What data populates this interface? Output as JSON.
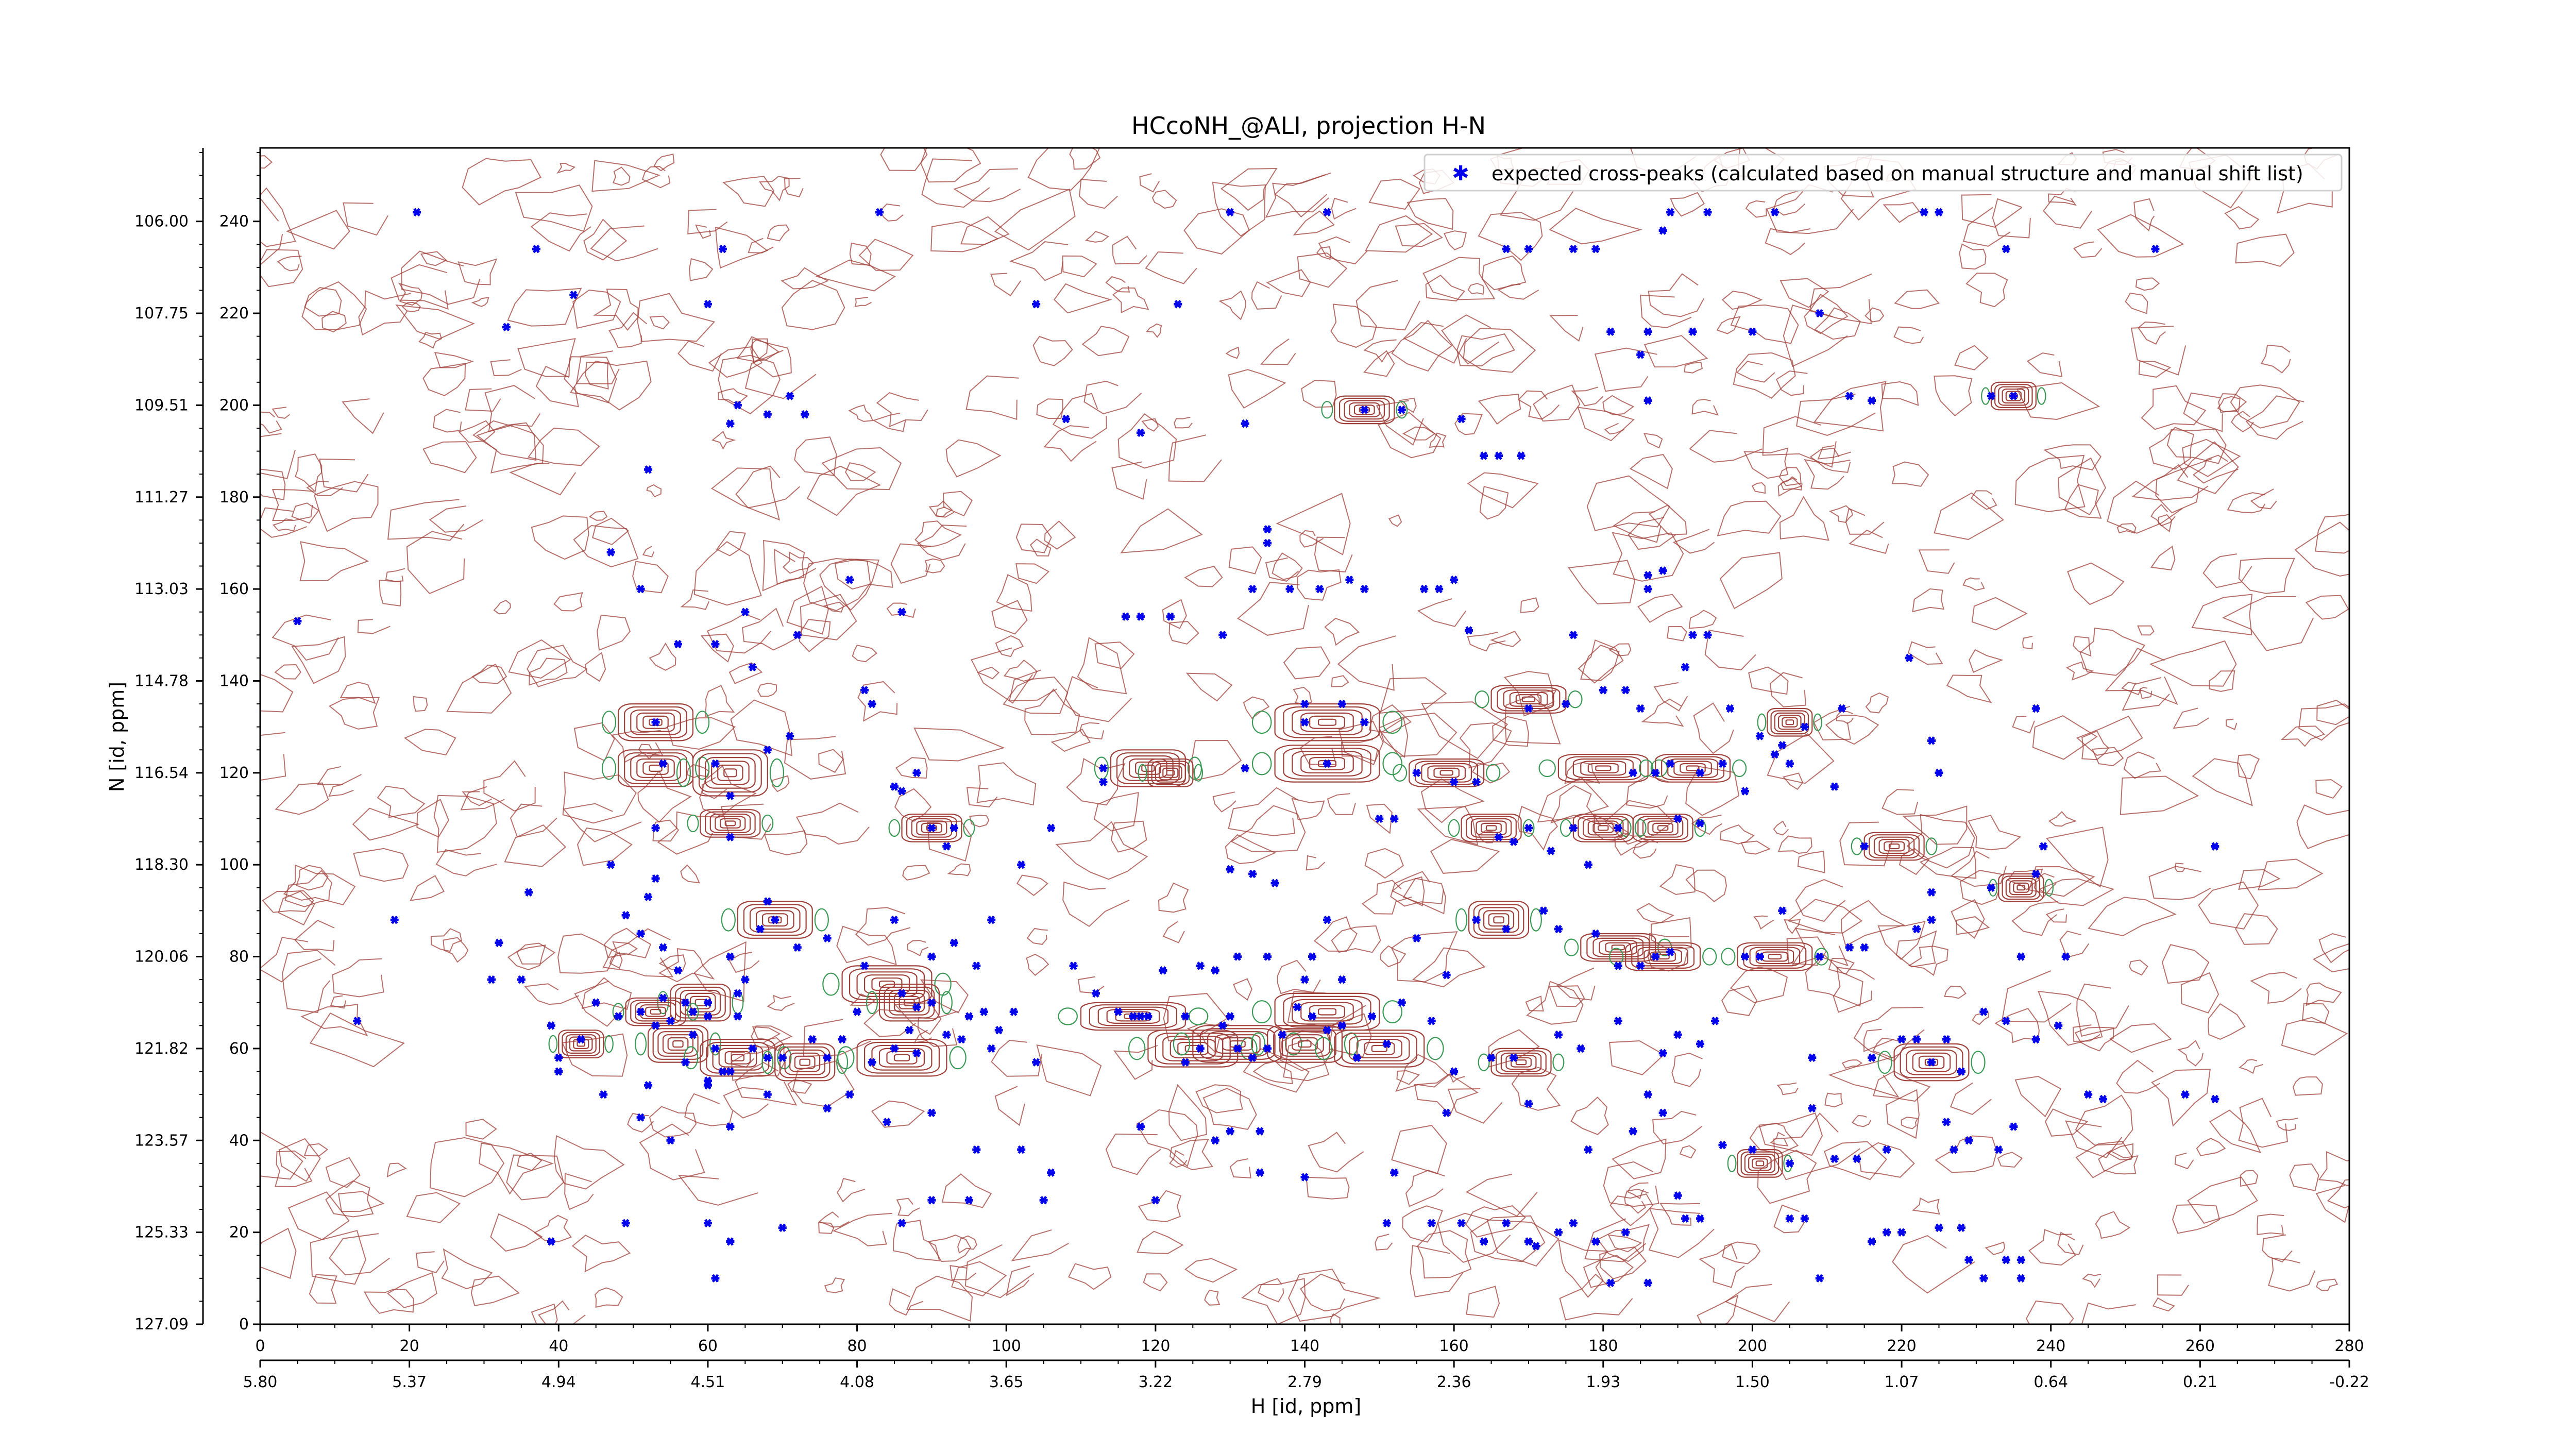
{
  "chart_data": {
    "type": "scatter",
    "title": "HCcoNH_@ALI, projection H-N",
    "xlabel": "H [id, ppm]",
    "ylabel": "N [id, ppm]",
    "xlim": [
      0,
      280
    ],
    "ylim": [
      0,
      256
    ],
    "x_ticks": [
      0,
      20,
      40,
      60,
      80,
      100,
      120,
      140,
      160,
      180,
      200,
      220,
      240,
      260,
      280
    ],
    "y_ticks": [
      0,
      20,
      40,
      60,
      80,
      100,
      120,
      140,
      160,
      180,
      200,
      220,
      240
    ],
    "x_ppm_ticks": [
      "5.80",
      "5.37",
      "4.94",
      "4.51",
      "4.08",
      "3.65",
      "3.22",
      "2.79",
      "2.36",
      "1.93",
      "1.50",
      "1.07",
      "0.64",
      "0.21",
      "-0.22"
    ],
    "y_ppm_ticks": [
      "127.09",
      "125.33",
      "123.57",
      "121.82",
      "120.06",
      "118.30",
      "116.54",
      "114.78",
      "113.03",
      "111.27",
      "109.51",
      "107.75",
      "106.00"
    ],
    "legend": {
      "position": "top-right",
      "label": "expected cross-peaks (calculated based on manual structure and manual shift list)"
    },
    "colors": {
      "markers": "#0000ee",
      "contour_positive": "#a0403a",
      "contour_negative": "#3a9a55",
      "axis": "#000000"
    },
    "grid": false,
    "peaks": [
      [
        21,
        242
      ],
      [
        33,
        217
      ],
      [
        37,
        234
      ],
      [
        42,
        224
      ],
      [
        60,
        222
      ],
      [
        62,
        234
      ],
      [
        64,
        200
      ],
      [
        63,
        196
      ],
      [
        68,
        198
      ],
      [
        71,
        202
      ],
      [
        73,
        198
      ],
      [
        83,
        242
      ],
      [
        104,
        222
      ],
      [
        108,
        197
      ],
      [
        118,
        194
      ],
      [
        123,
        222
      ],
      [
        130,
        242
      ],
      [
        132,
        196
      ],
      [
        135,
        173
      ],
      [
        143,
        242
      ],
      [
        148,
        199
      ],
      [
        153,
        199
      ],
      [
        161,
        197
      ],
      [
        164,
        189
      ],
      [
        166,
        189
      ],
      [
        169,
        189
      ],
      [
        167,
        234
      ],
      [
        170,
        234
      ],
      [
        176,
        234
      ],
      [
        179,
        234
      ],
      [
        181,
        216
      ],
      [
        186,
        216
      ],
      [
        185,
        211
      ],
      [
        186,
        201
      ],
      [
        188,
        238
      ],
      [
        189,
        242
      ],
      [
        192,
        216
      ],
      [
        194,
        242
      ],
      [
        200,
        216
      ],
      [
        203,
        242
      ],
      [
        209,
        220
      ],
      [
        213,
        202
      ],
      [
        216,
        201
      ],
      [
        223,
        242
      ],
      [
        225,
        242
      ],
      [
        232,
        202
      ],
      [
        235,
        202
      ],
      [
        234,
        234
      ],
      [
        254,
        234
      ],
      [
        5,
        153
      ],
      [
        52,
        186
      ],
      [
        47,
        168
      ],
      [
        51,
        160
      ],
      [
        56,
        148
      ],
      [
        61,
        148
      ],
      [
        66,
        143
      ],
      [
        65,
        155
      ],
      [
        72,
        150
      ],
      [
        79,
        162
      ],
      [
        81,
        138
      ],
      [
        82,
        135
      ],
      [
        86,
        155
      ],
      [
        88,
        120
      ],
      [
        86,
        116
      ],
      [
        93,
        108
      ],
      [
        116,
        154
      ],
      [
        118,
        154
      ],
      [
        122,
        154
      ],
      [
        129,
        150
      ],
      [
        133,
        160
      ],
      [
        135,
        170
      ],
      [
        138,
        160
      ],
      [
        142,
        160
      ],
      [
        146,
        162
      ],
      [
        148,
        160
      ],
      [
        156,
        160
      ],
      [
        158,
        160
      ],
      [
        160,
        162
      ],
      [
        162,
        151
      ],
      [
        170,
        134
      ],
      [
        175,
        135
      ],
      [
        176,
        150
      ],
      [
        180,
        138
      ],
      [
        183,
        138
      ],
      [
        185,
        134
      ],
      [
        186,
        160
      ],
      [
        188,
        164
      ],
      [
        186,
        163
      ],
      [
        191,
        143
      ],
      [
        192,
        150
      ],
      [
        194,
        150
      ],
      [
        197,
        134
      ],
      [
        201,
        128
      ],
      [
        203,
        124
      ],
      [
        204,
        126
      ],
      [
        212,
        134
      ],
      [
        221,
        145
      ],
      [
        224,
        127
      ],
      [
        225,
        120
      ],
      [
        238,
        134
      ],
      [
        53,
        131
      ],
      [
        54,
        122
      ],
      [
        53,
        108
      ],
      [
        53,
        97
      ],
      [
        52,
        93
      ],
      [
        61,
        122
      ],
      [
        63,
        115
      ],
      [
        63,
        106
      ],
      [
        68,
        125
      ],
      [
        71,
        128
      ],
      [
        85,
        117
      ],
      [
        90,
        108
      ],
      [
        92,
        104
      ],
      [
        102,
        100
      ],
      [
        106,
        108
      ],
      [
        113,
        121
      ],
      [
        113,
        118
      ],
      [
        132,
        121
      ],
      [
        130,
        99
      ],
      [
        133,
        98
      ],
      [
        136,
        96
      ],
      [
        140,
        135
      ],
      [
        140,
        131
      ],
      [
        143,
        122
      ],
      [
        145,
        135
      ],
      [
        148,
        131
      ],
      [
        150,
        110
      ],
      [
        152,
        110
      ],
      [
        155,
        120
      ],
      [
        160,
        118
      ],
      [
        163,
        118
      ],
      [
        166,
        106
      ],
      [
        168,
        105
      ],
      [
        170,
        108
      ],
      [
        173,
        103
      ],
      [
        176,
        108
      ],
      [
        178,
        100
      ],
      [
        182,
        108
      ],
      [
        184,
        120
      ],
      [
        187,
        120
      ],
      [
        189,
        122
      ],
      [
        190,
        110
      ],
      [
        193,
        120
      ],
      [
        196,
        122
      ],
      [
        193,
        109
      ],
      [
        199,
        116
      ],
      [
        205,
        122
      ],
      [
        207,
        130
      ],
      [
        211,
        117
      ],
      [
        215,
        104
      ],
      [
        224,
        94
      ],
      [
        232,
        95
      ],
      [
        238,
        98
      ],
      [
        239,
        104
      ],
      [
        262,
        104
      ],
      [
        18,
        88
      ],
      [
        32,
        83
      ],
      [
        35,
        75
      ],
      [
        36,
        94
      ],
      [
        47,
        100
      ],
      [
        49,
        89
      ],
      [
        51,
        85
      ],
      [
        54,
        82
      ],
      [
        54,
        71
      ],
      [
        56,
        77
      ],
      [
        57,
        70
      ],
      [
        58,
        68
      ],
      [
        60,
        70
      ],
      [
        63,
        80
      ],
      [
        64,
        72
      ],
      [
        65,
        75
      ],
      [
        67,
        86
      ],
      [
        68,
        92
      ],
      [
        69,
        88
      ],
      [
        72,
        82
      ],
      [
        76,
        84
      ],
      [
        81,
        78
      ],
      [
        85,
        88
      ],
      [
        86,
        72
      ],
      [
        88,
        69
      ],
      [
        90,
        80
      ],
      [
        93,
        83
      ],
      [
        96,
        78
      ],
      [
        98,
        88
      ],
      [
        99,
        64
      ],
      [
        101,
        68
      ],
      [
        109,
        78
      ],
      [
        118,
        67
      ],
      [
        121,
        77
      ],
      [
        126,
        78
      ],
      [
        128,
        77
      ],
      [
        130,
        67
      ],
      [
        131,
        80
      ],
      [
        135,
        80
      ],
      [
        140,
        75
      ],
      [
        141,
        80
      ],
      [
        143,
        88
      ],
      [
        145,
        75
      ],
      [
        155,
        84
      ],
      [
        159,
        76
      ],
      [
        163,
        88
      ],
      [
        167,
        86
      ],
      [
        172,
        90
      ],
      [
        174,
        86
      ],
      [
        179,
        85
      ],
      [
        182,
        78
      ],
      [
        185,
        78
      ],
      [
        187,
        80
      ],
      [
        189,
        81
      ],
      [
        199,
        80
      ],
      [
        201,
        80
      ],
      [
        204,
        90
      ],
      [
        209,
        80
      ],
      [
        213,
        82
      ],
      [
        215,
        82
      ],
      [
        222,
        86
      ],
      [
        224,
        88
      ],
      [
        236,
        80
      ],
      [
        242,
        80
      ],
      [
        13,
        66
      ],
      [
        31,
        75
      ],
      [
        39,
        65
      ],
      [
        40,
        58
      ],
      [
        43,
        62
      ],
      [
        45,
        70
      ],
      [
        48,
        67
      ],
      [
        51,
        68
      ],
      [
        53,
        65
      ],
      [
        55,
        66
      ],
      [
        58,
        63
      ],
      [
        60,
        67
      ],
      [
        61,
        60
      ],
      [
        57,
        57
      ],
      [
        60,
        52
      ],
      [
        63,
        55
      ],
      [
        64,
        67
      ],
      [
        66,
        60
      ],
      [
        68,
        58
      ],
      [
        70,
        58
      ],
      [
        74,
        62
      ],
      [
        76,
        58
      ],
      [
        78,
        62
      ],
      [
        80,
        68
      ],
      [
        82,
        57
      ],
      [
        85,
        60
      ],
      [
        87,
        64
      ],
      [
        88,
        59
      ],
      [
        90,
        70
      ],
      [
        92,
        63
      ],
      [
        94,
        62
      ],
      [
        95,
        67
      ],
      [
        97,
        68
      ],
      [
        98,
        60
      ],
      [
        104,
        57
      ],
      [
        112,
        72
      ],
      [
        115,
        68
      ],
      [
        117,
        67
      ],
      [
        119,
        67
      ],
      [
        124,
        67
      ],
      [
        124,
        57
      ],
      [
        126,
        60
      ],
      [
        129,
        65
      ],
      [
        131,
        60
      ],
      [
        133,
        58
      ],
      [
        135,
        60
      ],
      [
        137,
        63
      ],
      [
        139,
        69
      ],
      [
        141,
        67
      ],
      [
        143,
        64
      ],
      [
        145,
        65
      ],
      [
        147,
        58
      ],
      [
        149,
        67
      ],
      [
        151,
        61
      ],
      [
        153,
        70
      ],
      [
        157,
        66
      ],
      [
        160,
        55
      ],
      [
        165,
        58
      ],
      [
        168,
        58
      ],
      [
        174,
        63
      ],
      [
        177,
        60
      ],
      [
        182,
        66
      ],
      [
        188,
        59
      ],
      [
        190,
        63
      ],
      [
        193,
        61
      ],
      [
        195,
        66
      ],
      [
        208,
        58
      ],
      [
        216,
        58
      ],
      [
        220,
        62
      ],
      [
        222,
        62
      ],
      [
        224,
        57
      ],
      [
        226,
        62
      ],
      [
        228,
        55
      ],
      [
        231,
        68
      ],
      [
        234,
        66
      ],
      [
        238,
        62
      ],
      [
        241,
        65
      ],
      [
        40,
        55
      ],
      [
        46,
        50
      ],
      [
        51,
        45
      ],
      [
        52,
        52
      ],
      [
        55,
        40
      ],
      [
        60,
        53
      ],
      [
        62,
        55
      ],
      [
        63,
        43
      ],
      [
        68,
        50
      ],
      [
        76,
        47
      ],
      [
        79,
        50
      ],
      [
        84,
        44
      ],
      [
        90,
        46
      ],
      [
        96,
        38
      ],
      [
        102,
        38
      ],
      [
        106,
        33
      ],
      [
        118,
        43
      ],
      [
        128,
        40
      ],
      [
        134,
        42
      ],
      [
        130,
        42
      ],
      [
        134,
        33
      ],
      [
        140,
        32
      ],
      [
        152,
        33
      ],
      [
        159,
        46
      ],
      [
        170,
        48
      ],
      [
        178,
        38
      ],
      [
        184,
        42
      ],
      [
        186,
        50
      ],
      [
        188,
        46
      ],
      [
        196,
        39
      ],
      [
        200,
        38
      ],
      [
        205,
        35
      ],
      [
        208,
        47
      ],
      [
        211,
        36
      ],
      [
        214,
        36
      ],
      [
        218,
        38
      ],
      [
        226,
        44
      ],
      [
        227,
        38
      ],
      [
        229,
        40
      ],
      [
        233,
        38
      ],
      [
        235,
        43
      ],
      [
        245,
        50
      ],
      [
        247,
        49
      ],
      [
        258,
        50
      ],
      [
        262,
        49
      ],
      [
        39,
        18
      ],
      [
        49,
        22
      ],
      [
        60,
        22
      ],
      [
        63,
        18
      ],
      [
        61,
        10
      ],
      [
        70,
        21
      ],
      [
        86,
        22
      ],
      [
        90,
        27
      ],
      [
        95,
        27
      ],
      [
        105,
        27
      ],
      [
        120,
        27
      ],
      [
        151,
        22
      ],
      [
        157,
        22
      ],
      [
        161,
        22
      ],
      [
        164,
        18
      ],
      [
        167,
        22
      ],
      [
        170,
        18
      ],
      [
        171,
        17
      ],
      [
        174,
        20
      ],
      [
        176,
        22
      ],
      [
        179,
        18
      ],
      [
        181,
        9
      ],
      [
        183,
        20
      ],
      [
        186,
        9
      ],
      [
        190,
        28
      ],
      [
        191,
        23
      ],
      [
        193,
        23
      ],
      [
        205,
        23
      ],
      [
        207,
        23
      ],
      [
        209,
        10
      ],
      [
        216,
        18
      ],
      [
        218,
        20
      ],
      [
        220,
        20
      ],
      [
        225,
        21
      ],
      [
        228,
        21
      ],
      [
        229,
        14
      ],
      [
        231,
        10
      ],
      [
        234,
        14
      ],
      [
        236,
        14
      ],
      [
        236,
        10
      ]
    ],
    "contour_groups": [
      [
        53,
        131,
        5,
        4
      ],
      [
        53,
        121,
        5,
        4
      ],
      [
        63,
        120,
        5,
        5
      ],
      [
        63,
        109,
        4,
        3
      ],
      [
        69,
        88,
        5,
        4
      ],
      [
        59,
        70,
        4,
        4
      ],
      [
        53,
        68,
        4,
        3
      ],
      [
        43,
        61,
        3,
        3
      ],
      [
        56,
        61,
        4,
        4
      ],
      [
        64,
        58,
        5,
        4
      ],
      [
        73,
        57,
        4,
        4
      ],
      [
        84,
        74,
        6,
        4
      ],
      [
        87,
        70,
        4,
        4
      ],
      [
        86,
        58,
        6,
        4
      ],
      [
        90,
        108,
        4,
        3
      ],
      [
        119,
        121,
        5,
        4
      ],
      [
        117,
        67,
        7,
        3
      ],
      [
        125,
        60,
        6,
        4
      ],
      [
        131,
        61,
        6,
        4
      ],
      [
        143,
        68,
        7,
        4
      ],
      [
        140,
        61,
        5,
        4
      ],
      [
        150,
        60,
        6,
        4
      ],
      [
        143,
        131,
        7,
        4
      ],
      [
        143,
        122,
        7,
        4
      ],
      [
        159,
        120,
        5,
        3
      ],
      [
        165,
        108,
        4,
        3
      ],
      [
        166,
        88,
        4,
        4
      ],
      [
        169,
        57,
        4,
        3
      ],
      [
        180,
        121,
        6,
        3
      ],
      [
        192,
        121,
        5,
        3
      ],
      [
        188,
        108,
        4,
        3
      ],
      [
        182,
        82,
        5,
        3
      ],
      [
        188,
        80,
        5,
        3
      ],
      [
        203,
        80,
        5,
        3
      ],
      [
        180,
        108,
        4,
        3
      ],
      [
        205,
        131,
        3,
        3
      ],
      [
        170,
        136,
        5,
        3
      ],
      [
        219,
        104,
        4,
        3
      ],
      [
        224,
        57,
        5,
        4
      ],
      [
        236,
        95,
        3,
        3
      ],
      [
        235,
        202,
        3,
        3
      ],
      [
        201,
        35,
        3,
        3
      ],
      [
        148,
        199,
        4,
        3
      ],
      [
        122,
        120,
        3,
        3
      ]
    ]
  }
}
